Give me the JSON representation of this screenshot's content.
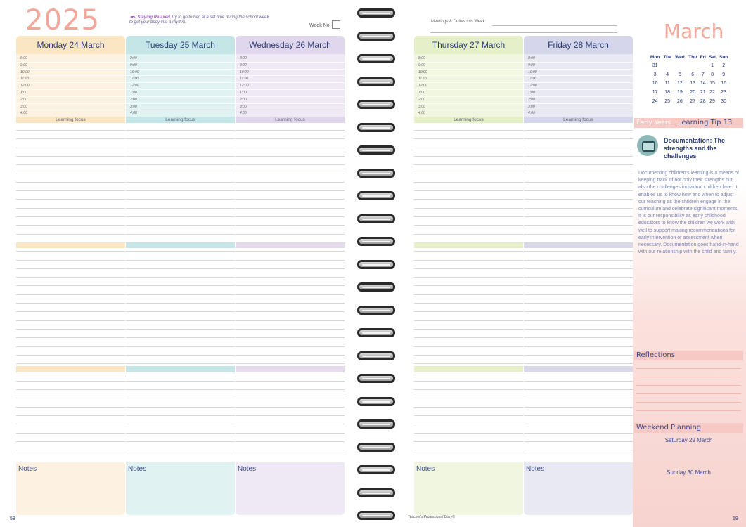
{
  "left_page": {
    "year": "2025",
    "tip_title": "Staying Relaxed",
    "tip_text": "Try to go to bed at a set time during the school week to get your body into a rhythm.",
    "week_label": "Week No.",
    "page_number": "58"
  },
  "right_page": {
    "meetings_label": "Meetings & Duties this Week:",
    "page_number": "59",
    "footer": "Teacher's Professional Diary®"
  },
  "time_slots": [
    "8:00",
    "9:00",
    "10:00",
    "11:00",
    "12:00",
    "1:00",
    "2:00",
    "3:00",
    "4:00"
  ],
  "learning_focus_label": "Learning focus",
  "notes_label": "Notes",
  "days": [
    {
      "label": "Monday 24 March",
      "color": "#fbe6c4",
      "light": "#fdf2e1",
      "band": "#fbe6c4"
    },
    {
      "label": "Tuesday 25 March",
      "color": "#c4e6e6",
      "light": "#e0f2f2",
      "band": "#c4e6e6"
    },
    {
      "label": "Wednesday 26 March",
      "color": "#e1d7ec",
      "light": "#efe9f5",
      "band": "#e6d9ec"
    },
    {
      "label": "Thursday 27 March",
      "color": "#e5efc8",
      "light": "#f1f6e0",
      "band": "#e5efc8"
    },
    {
      "label": "Friday 28 March",
      "color": "#d6d6ea",
      "light": "#e9e9f4",
      "band": "#d8d8ea"
    }
  ],
  "sidebar": {
    "month": "March",
    "weekday_headers": [
      "Mon",
      "Tue",
      "Wed",
      "Thu",
      "Fri",
      "Sat",
      "Sun"
    ],
    "weeks": [
      [
        "31",
        "",
        "",
        "",
        "",
        "1",
        "2"
      ],
      [
        "3",
        "4",
        "5",
        "6",
        "7",
        "8",
        "9"
      ],
      [
        "10",
        "11",
        "12",
        "13",
        "14",
        "15",
        "16"
      ],
      [
        "17",
        "18",
        "19",
        "20",
        "21",
        "22",
        "23"
      ],
      [
        "24",
        "25",
        "26",
        "27",
        "28",
        "29",
        "30"
      ]
    ],
    "early_years": "Early Years",
    "learning_tip": "Learning Tip 13",
    "doc_title": "Documentation: The strengths and the challenges",
    "doc_body": "Documenting children's learning is a means of keeping track of not only their strengths but also the challenges individual children face. It enables us to know how and when to adjust our teaching as the children engage in the curriculum and celebrate significant moments. It is our responsibility as early childhood educators to know the children we work with well to support making recommendations for early intervention or assessment when necessary. Documentation goes hand-in-hand with our relationship with the child and family.",
    "reflections": "Reflections",
    "weekend_planning": "Weekend Planning",
    "saturday": "Saturday 29 March",
    "sunday": "Sunday 30 March"
  }
}
